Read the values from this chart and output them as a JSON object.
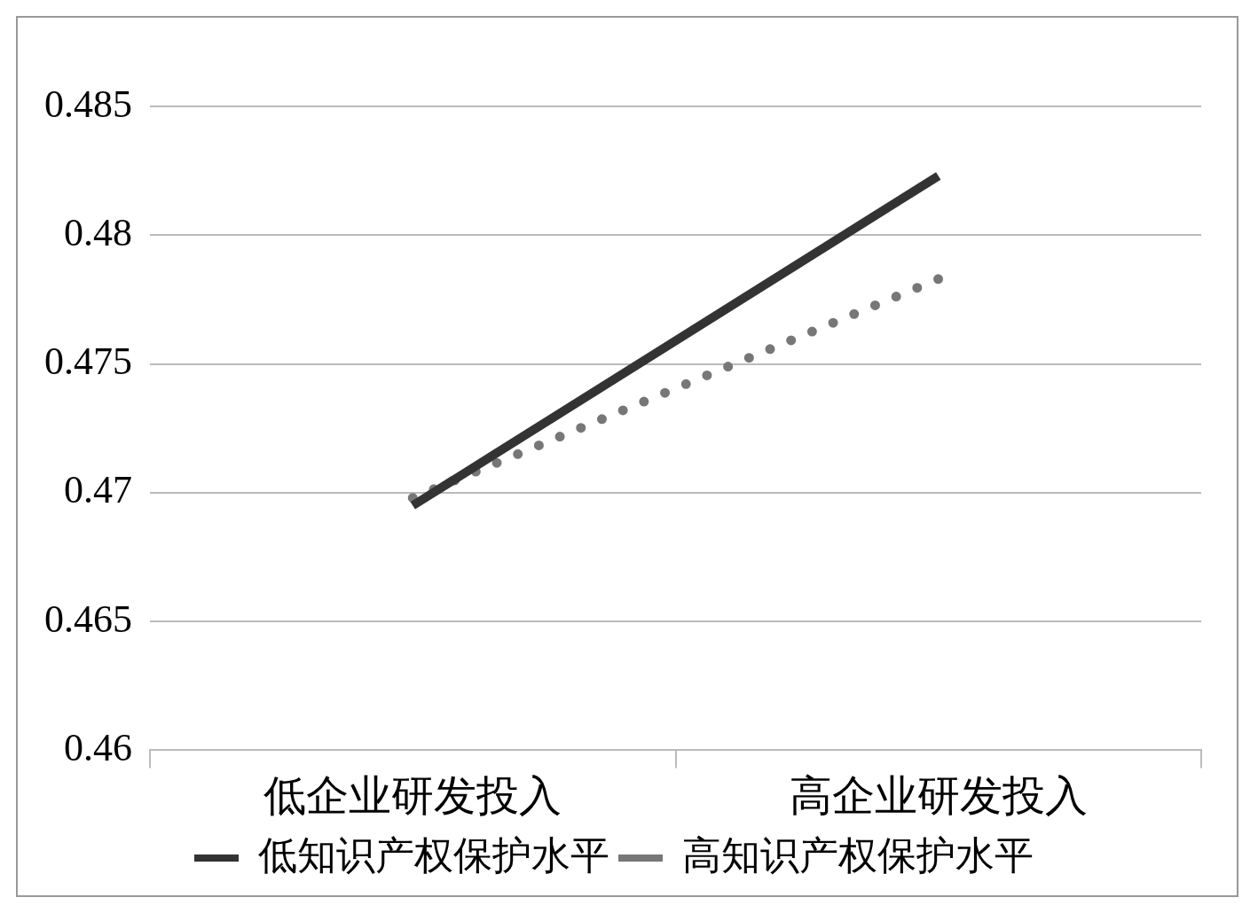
{
  "chart_data": {
    "type": "line",
    "categories": [
      "低企业研发投入",
      "高企业研发投入"
    ],
    "series": [
      {
        "name": "低知识产权保护水平",
        "color": "#333333",
        "values": [
          0.4695,
          0.4823
        ],
        "line_style": "solid"
      },
      {
        "name": "高知识产权保护水平",
        "color": "#777777",
        "values": [
          0.4698,
          0.4783
        ],
        "line_style": "dotted"
      }
    ],
    "ylim": [
      0.46,
      0.485
    ],
    "yticks": [
      0.46,
      0.465,
      0.47,
      0.475,
      0.48,
      0.485
    ],
    "grid": "y",
    "legend": "bottom",
    "marker": "none"
  }
}
